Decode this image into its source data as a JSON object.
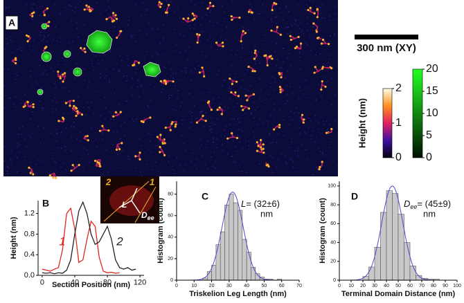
{
  "panel_a": {
    "label": "A",
    "scale_bar": "300 nm (XY)",
    "colorbar_label": "Height (nm)",
    "colorbar_1": {
      "ticks": [
        0,
        1,
        2
      ],
      "lim": [
        0,
        2
      ]
    },
    "colorbar_2": {
      "ticks": [
        0,
        5,
        10,
        15,
        20
      ],
      "lim": [
        0,
        20
      ]
    }
  },
  "chart_data": [
    {
      "type": "line",
      "panel": "B",
      "xlabel": "Section Position (nm)",
      "ylabel": "Height (nm)",
      "x": [
        0,
        5,
        10,
        15,
        20,
        25,
        30,
        35,
        40,
        45,
        50,
        55,
        60,
        65,
        70,
        75,
        80,
        85,
        90,
        95,
        100,
        105,
        110,
        115
      ],
      "series": [
        {
          "name": "1",
          "color": "#e0261f",
          "values": [
            0.12,
            0.1,
            0.08,
            0.12,
            0.15,
            0.5,
            1.2,
            1.3,
            0.9,
            0.25,
            0.3,
            0.7,
            1.05,
            0.95,
            0.35,
            0.08,
            0.05,
            0.06,
            0.04,
            0.05,
            null,
            null,
            null,
            null
          ]
        },
        {
          "name": "2",
          "color": "#222222",
          "values": [
            0.05,
            0.04,
            0.05,
            0.03,
            0.05,
            0.04,
            0.1,
            0.3,
            0.8,
            1.25,
            1.42,
            1.2,
            0.8,
            0.6,
            0.65,
            0.8,
            0.95,
            0.7,
            0.3,
            0.15,
            0.12,
            0.15,
            0.1,
            0.12
          ]
        }
      ],
      "xlim": [
        -5,
        125
      ],
      "xticks": [
        0,
        40,
        80,
        120
      ],
      "ylim": [
        0,
        1.45
      ],
      "yticks": [
        {
          "value": 0,
          "label": "0.0"
        },
        0.4,
        0.8,
        1.2
      ],
      "inset_labels": {
        "leg_a": "2",
        "leg_b": "1",
        "length": "L",
        "distance": {
          "symbol": "D",
          "subscript": "ee"
        }
      }
    },
    {
      "type": "histogram",
      "panel": "C",
      "xlabel": "Triskelion Leg Length (nm)",
      "ylabel": "Histogram (count)",
      "color": "#c8c8c8",
      "bins": [
        15,
        17.5,
        20,
        22.5,
        25,
        27.5,
        30,
        32.5,
        35,
        37.5,
        40,
        42.5,
        45,
        47.5,
        50,
        52.5,
        55,
        57.5,
        60
      ],
      "values": [
        2,
        8,
        14,
        33,
        45,
        70,
        80,
        72,
        65,
        38,
        26,
        12,
        6,
        3,
        1,
        1,
        0,
        1
      ],
      "fit": {
        "color": "#4a4ad0",
        "amplitude": 82,
        "center": 32,
        "sigma": 6
      },
      "annotation": {
        "symbol": "L",
        "text": "= (32±6)",
        "unit": "nm"
      },
      "xlim": [
        0,
        70
      ],
      "xticks": [
        0,
        10,
        20,
        30,
        40,
        50,
        60,
        70
      ],
      "ylim": [
        0,
        92
      ],
      "yticks": [
        0,
        20,
        40,
        60,
        80
      ]
    },
    {
      "type": "histogram",
      "panel": "D",
      "xlabel": "Terminal Domain Distance (nm)",
      "ylabel": "Histogram (count)",
      "color": "#c8c8c8",
      "bins": [
        20,
        25,
        30,
        35,
        40,
        45,
        50,
        55,
        60,
        65,
        70,
        75,
        80,
        85
      ],
      "values": [
        4,
        14,
        35,
        72,
        95,
        92,
        70,
        40,
        15,
        5,
        2,
        1,
        1
      ],
      "fit": {
        "color": "#4a4ad0",
        "amplitude": 100,
        "center": 45,
        "sigma": 9
      },
      "annotation": {
        "symbol": "D",
        "subscript": "ee",
        "text": "= (45±9)",
        "unit": "nm"
      },
      "xlim": [
        0,
        100
      ],
      "xticks": [
        0,
        10,
        20,
        30,
        40,
        50,
        60,
        70,
        80,
        90,
        100
      ],
      "ylim": [
        0,
        105
      ],
      "yticks": [
        0,
        20,
        40,
        60,
        80,
        100
      ]
    }
  ]
}
